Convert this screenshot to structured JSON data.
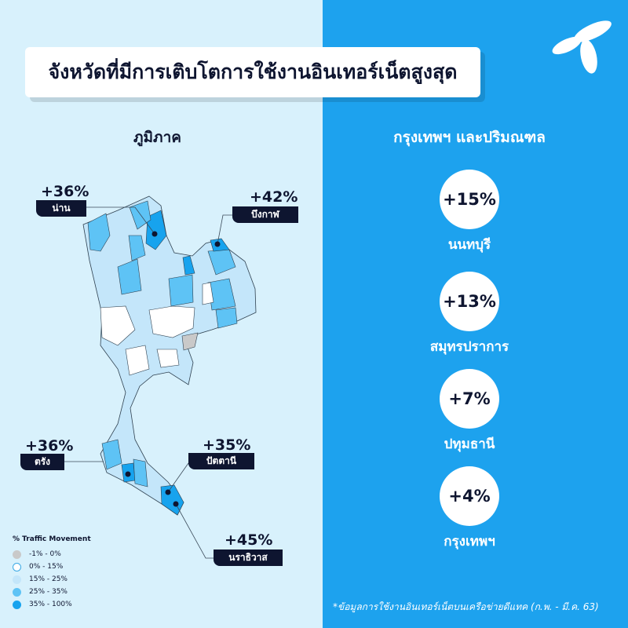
{
  "title": "จังหวัดที่มีการเติบโตการใช้งานอินเทอร์เน็ตสูงสุด",
  "left": {
    "heading": "ภูมิภาค",
    "callouts": [
      {
        "value": "+36%",
        "province": "น่าน"
      },
      {
        "value": "+42%",
        "province": "บึงกาฬ"
      },
      {
        "value": "+36%",
        "province": "ตรัง"
      },
      {
        "value": "+35%",
        "province": "ปัตตานี"
      },
      {
        "value": "+45%",
        "province": "นราธิวาส"
      }
    ],
    "legend": {
      "title": "% Traffic Movement",
      "items": [
        {
          "label": "-1% - 0%",
          "color": "#c9c9c9"
        },
        {
          "label": "0% - 15%",
          "color": "#ffffff"
        },
        {
          "label": "15% - 25%",
          "color": "#c4e6fa"
        },
        {
          "label": "25% - 35%",
          "color": "#5ec3f5"
        },
        {
          "label": "35% - 100%",
          "color": "#17a3ee"
        }
      ]
    }
  },
  "right": {
    "heading": "กรุงเทพฯ และปริมณฑล",
    "items": [
      {
        "value": "+15%",
        "province": "นนทบุรี"
      },
      {
        "value": "+13%",
        "province": "สมุทรปราการ"
      },
      {
        "value": "+7%",
        "province": "ปทุมธานี"
      },
      {
        "value": "+4%",
        "province": "กรุงเทพฯ"
      }
    ]
  },
  "footnote": "*ข้อมูลการใช้งานอินเทอร์เน็ตบนเครือข่ายดีแทค (ก.พ. - มี.ค. 63)",
  "colors": {
    "left_bg": "#d8f1fc",
    "right_bg": "#1da2ee",
    "tag_bg": "#0e1530"
  },
  "logo": "dtac-logo"
}
